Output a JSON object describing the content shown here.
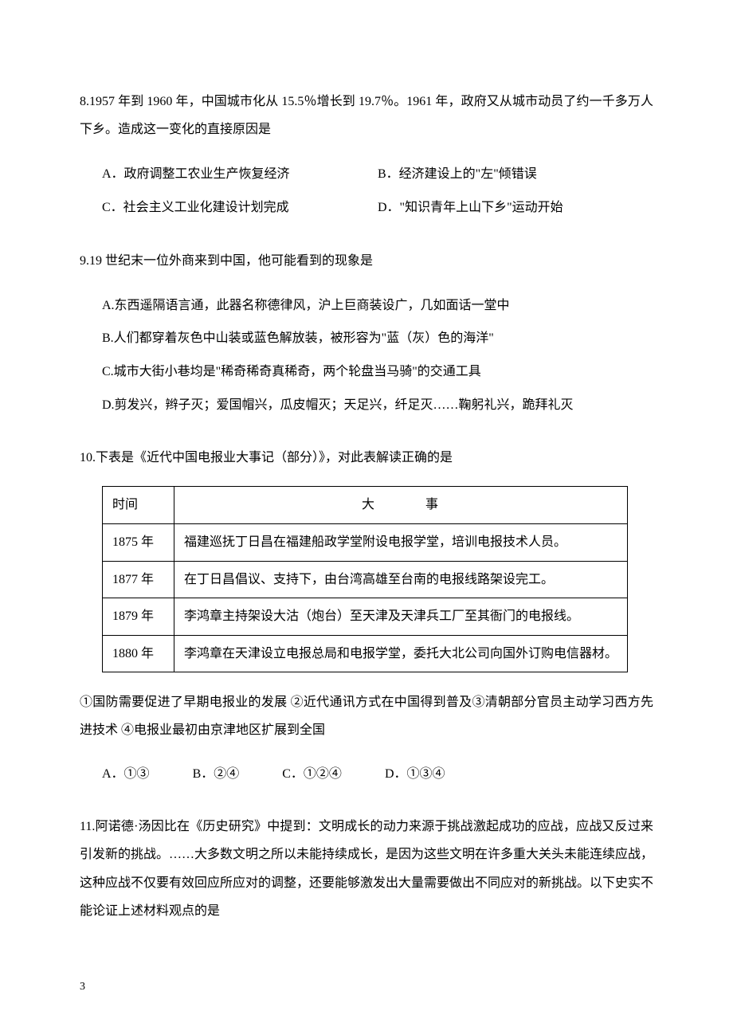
{
  "page": {
    "number": "3"
  },
  "q8": {
    "text": "8.1957 年到 1960 年，中国城市化从 15.5％增长到 19.7％。1961 年，政府又从城市动员了约一千多万人下乡。造成这一变化的直接原因是",
    "A": "A．政府调整工农业生产恢复经济",
    "B": "B．经济建设上的\"左\"倾错误",
    "C": "C．社会主义工业化建设计划完成",
    "D": "D．\"知识青年上山下乡\"运动开始"
  },
  "q9": {
    "text": "9.19 世纪末一位外商来到中国，他可能看到的现象是",
    "A": "A.东西遥隔语言通，此器名称德律风，沪上巨商装设广，几如面话一堂中",
    "B": "B.人们都穿着灰色中山装或蓝色解放装，被形容为\"蓝（灰）色的海洋\"",
    "C": "C.城市大街小巷均是\"稀奇稀奇真稀奇，两个轮盘当马骑\"的交通工具",
    "D": "D.剪发兴，辫子灭；爱国帽兴，瓜皮帽灭；天足兴，纤足灭……鞠躬礼兴，跪拜礼灭"
  },
  "q10": {
    "text": "10.下表是《近代中国电报业大事记（部分）》，对此表解读正确的是",
    "table": {
      "col_time": "时间",
      "col_event": "大 事",
      "rows": [
        {
          "time": "1875 年",
          "event": "福建巡抚丁日昌在福建船政学堂附设电报学堂，培训电报技术人员。"
        },
        {
          "time": "1877 年",
          "event": "在丁日昌倡议、支持下，由台湾高雄至台南的电报线路架设完工。"
        },
        {
          "time": "1879 年",
          "event": "李鸿章主持架设大沽（炮台）至天津及天津兵工厂至其衙门的电报线。"
        },
        {
          "time": "1880 年",
          "event": "李鸿章在天津设立电报总局和电报学堂，委托大北公司向国外订购电信器材。"
        }
      ]
    },
    "sub": "①国防需要促进了早期电报业的发展 ②近代通讯方式在中国得到普及③清朝部分官员主动学习西方先进技术 ④电报业最初由京津地区扩展到全国",
    "A": "A．①③",
    "B": "B．②④",
    "C": "C．①②④",
    "D": "D．①③④"
  },
  "q11": {
    "text": "11.阿诺德·汤因比在《历史研究》中提到：文明成长的动力来源于挑战激起成功的应战，应战又反过来引发新的挑战。……大多数文明之所以未能持续成长，是因为这些文明在许多重大关头未能连续应战，这种应战不仅要有效回应所应对的调整，还要能够激发出大量需要做出不同应对的新挑战。以下史实不能论证上述材料观点的是"
  }
}
